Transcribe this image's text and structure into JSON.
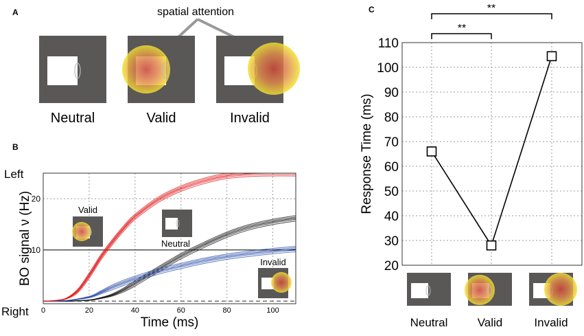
{
  "panels": {
    "a": {
      "letter": "A",
      "annotation": "spatial attention",
      "labels": [
        "Neutral",
        "Valid",
        "Invalid"
      ]
    },
    "b": {
      "letter": "B",
      "y_top_label": "Left",
      "y_bottom_label": "Right",
      "inset_labels": {
        "valid": "Valid",
        "neutral": "Neutral",
        "invalid": "Invalid"
      }
    },
    "c": {
      "letter": "C",
      "sig1": "**",
      "sig2": "**"
    }
  },
  "colors": {
    "valid": "#e01010",
    "invalid": "#2a4ea8",
    "neutral": "#111111",
    "square_bg": "#5a5757"
  },
  "chart_data": [
    {
      "type": "line",
      "title": "",
      "xlabel": "Time (ms)",
      "ylabel": "BO signal ν (Hz)",
      "xlim": [
        0,
        110
      ],
      "ylim": [
        -0.5,
        25
      ],
      "xticks": [
        0,
        20,
        40,
        60,
        80,
        100
      ],
      "yticks": [
        10,
        20
      ],
      "reference_lines": [
        10,
        0
      ],
      "series": [
        {
          "name": "Valid",
          "color": "#e01010",
          "x": [
            0,
            5,
            10,
            15,
            20,
            25,
            30,
            35,
            40,
            50,
            60,
            70,
            80,
            90,
            100,
            110
          ],
          "y": [
            0,
            0.1,
            0.5,
            2,
            5,
            8.5,
            11.5,
            14.2,
            16.5,
            19.8,
            22,
            23.5,
            24.5,
            24.9,
            25,
            25
          ]
        },
        {
          "name": "Neutral",
          "color": "#111111",
          "x": [
            0,
            10,
            20,
            25,
            30,
            35,
            40,
            50,
            60,
            70,
            80,
            90,
            100,
            110
          ],
          "y": [
            0,
            0,
            0.2,
            0.6,
            1.2,
            2.2,
            3.5,
            6.2,
            8.8,
            11,
            13,
            14.5,
            15.5,
            16.2
          ]
        },
        {
          "name": "Invalid",
          "color": "#2a4ea8",
          "x": [
            0,
            10,
            20,
            25,
            30,
            35,
            40,
            50,
            60,
            70,
            80,
            90,
            100,
            110
          ],
          "y": [
            0,
            0.1,
            0.8,
            1.7,
            2.7,
            3.6,
            4.4,
            5.8,
            6.9,
            7.9,
            8.7,
            9.3,
            9.8,
            10.2
          ]
        }
      ]
    },
    {
      "type": "line",
      "title": "",
      "xlabel": "",
      "ylabel": "Response Time (ms)",
      "categories": [
        "Neutral",
        "Valid",
        "Invalid"
      ],
      "values": [
        66,
        28,
        104.5
      ],
      "ylim": [
        20,
        110
      ],
      "yticks": [
        20,
        30,
        40,
        50,
        60,
        70,
        80,
        90,
        100,
        110
      ],
      "marker": "square"
    }
  ]
}
